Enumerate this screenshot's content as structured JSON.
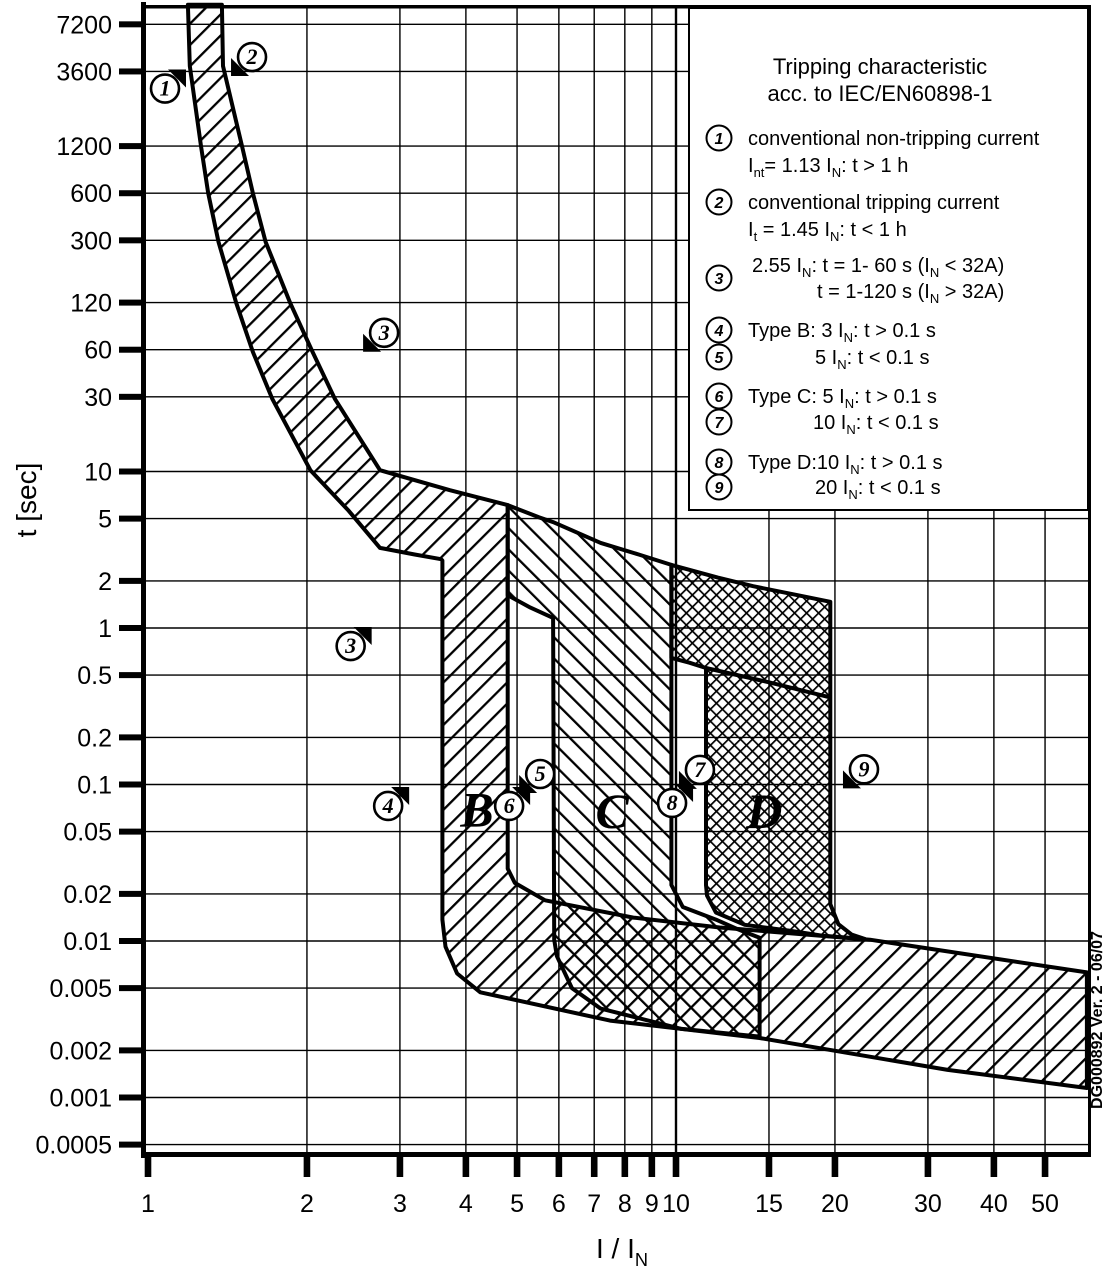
{
  "doc_ref": "DG000892 Ver. 2 - 06/07",
  "axes": {
    "y_label": "t [sec]",
    "x_label": "I / I⟨N⟩",
    "y_ticks": [
      "7200",
      "3600",
      "1200",
      "600",
      "300",
      "120",
      "60",
      "30",
      "10",
      "5",
      "2",
      "1",
      "0.5",
      "0.2",
      "0.1",
      "0.05",
      "0.02",
      "0.01",
      "0.005",
      "0.002",
      "0.001",
      "0.0005"
    ],
    "x_ticks": [
      "1",
      "2",
      "3",
      "4",
      "5",
      "6",
      "7",
      "8",
      "9",
      "10",
      "15",
      "20",
      "30",
      "40",
      "50"
    ]
  },
  "legend": {
    "title_line1": "Tripping characteristic",
    "title_line2": "acc. to IEC/EN60898-1",
    "items": [
      {
        "num": "1",
        "lines": [
          "conventional non-tripping current",
          "I⟨nt⟩= 1.13 I⟨N⟩: t > 1 h"
        ]
      },
      {
        "num": "2",
        "lines": [
          "conventional tripping current",
          "I⟨t⟩ = 1.45 I⟨N⟩: t < 1 h"
        ]
      },
      {
        "num": "3",
        "lines": [
          "2.55 I⟨N⟩: t = 1- 60 s (I⟨N⟩ < 32A)",
          "t = 1-120 s (I⟨N⟩ > 32A)"
        ]
      },
      {
        "num": "4",
        "lines": [
          "Type B: 3 I⟨N⟩: t > 0.1 s"
        ]
      },
      {
        "num": "5",
        "lines": [
          "5 I⟨N⟩: t < 0.1 s"
        ]
      },
      {
        "num": "6",
        "lines": [
          "Type C: 5 I⟨N⟩: t > 0.1 s"
        ]
      },
      {
        "num": "7",
        "lines": [
          "10 I⟨N⟩: t < 0.1 s"
        ]
      },
      {
        "num": "8",
        "lines": [
          "Type D:10 I⟨N⟩: t > 0.1 s"
        ]
      },
      {
        "num": "9",
        "lines": [
          "20 I⟨N⟩: t < 0.1 s"
        ]
      }
    ]
  },
  "chart_data": {
    "type": "area",
    "title": "Tripping characteristic acc. to IEC/EN60898-1",
    "xlabel": "I / I_N",
    "ylabel": "t [sec]",
    "x_range": [
      1,
      60
    ],
    "y_range": [
      0.0005,
      9600
    ],
    "x_scale": "log",
    "y_scale": "log",
    "grid": true,
    "band_labels": [
      {
        "text": "B",
        "v": 4.2,
        "t": 0.069
      },
      {
        "text": "C",
        "v": 7.57,
        "t": 0.0675
      },
      {
        "text": "D",
        "v": 14.7,
        "t": 0.0675
      }
    ],
    "annotations": [
      {
        "n": "1",
        "v": 1.077,
        "t": 2800,
        "dir": "ur",
        "meaning": "non-tripping current 1.13 IN at 1 h"
      },
      {
        "n": "2",
        "v": 1.574,
        "t": 4450,
        "dir": "dl",
        "meaning": "tripping current 1.45 IN at 1 h"
      },
      {
        "n": "3",
        "v": 2.8,
        "t": 77,
        "dir": "dl",
        "meaning": "2.55 IN upper limit 60 s"
      },
      {
        "n": "3",
        "v": 2.42,
        "t": 0.767,
        "dir": "ur",
        "meaning": "2.55 IN lower limit 1 s"
      },
      {
        "n": "4",
        "v": 2.85,
        "t": 0.0729,
        "dir": "ur",
        "meaning": "Type B 3 IN"
      },
      {
        "n": "5",
        "v": 5.53,
        "t": 0.1167,
        "dir": "dl",
        "meaning": "Type B 5 IN"
      },
      {
        "n": "6",
        "v": 4.83,
        "t": 0.0729,
        "dir": "ur",
        "meaning": "Type C 5 IN"
      },
      {
        "n": "7",
        "v": 11.1,
        "t": 0.124,
        "dir": "dl",
        "meaning": "Type C 10 IN"
      },
      {
        "n": "8",
        "v": 9.83,
        "t": 0.0762,
        "dir": "ur",
        "meaning": "Type D 10 IN"
      },
      {
        "n": "9",
        "v": 22.7,
        "t": 0.125,
        "dir": "dl",
        "meaning": "Type D 20 IN"
      }
    ],
    "regions": {
      "thermal_B_band": [
        [
          1.19,
          9600
        ],
        [
          1.2,
          3900
        ],
        [
          1.26,
          1200
        ],
        [
          1.3,
          600
        ],
        [
          1.36,
          293
        ],
        [
          1.47,
          119
        ],
        [
          1.58,
          58
        ],
        [
          1.72,
          29
        ],
        [
          2.03,
          10.2
        ],
        [
          2.4,
          5.6
        ],
        [
          2.75,
          3.25
        ],
        [
          3.2,
          2.95
        ],
        [
          3.59,
          2.75
        ],
        [
          3.61,
          2.7
        ],
        [
          3.61,
          0.0137
        ],
        [
          3.66,
          0.0092
        ],
        [
          3.85,
          0.0062
        ],
        [
          4.26,
          0.0047
        ],
        [
          7.5,
          0.0031
        ],
        [
          14.4,
          0.0024
        ],
        [
          32.7,
          0.0015
        ],
        [
          60,
          0.00115
        ],
        [
          60,
          0.0063
        ],
        [
          23.3,
          0.0102
        ],
        [
          12.1,
          0.0122
        ],
        [
          8.3,
          0.0141
        ],
        [
          5.65,
          0.0182
        ],
        [
          4.95,
          0.0235
        ],
        [
          4.8,
          0.029
        ],
        [
          4.8,
          6.1
        ],
        [
          3.73,
          7.6
        ],
        [
          2.75,
          10.2
        ],
        [
          2.26,
          29
        ],
        [
          2.05,
          58
        ],
        [
          1.86,
          119
        ],
        [
          1.67,
          293
        ],
        [
          1.58,
          600
        ],
        [
          1.507,
          1200
        ],
        [
          1.387,
          3900
        ],
        [
          1.38,
          9600
        ]
      ],
      "C_band": [
        [
          4.8,
          6.1
        ],
        [
          5.5,
          5.1
        ],
        [
          5.85,
          4.75
        ],
        [
          7.2,
          3.5
        ],
        [
          8.5,
          2.95
        ],
        [
          9.8,
          2.53
        ],
        [
          9.8,
          0.0228
        ],
        [
          10.3,
          0.0165
        ],
        [
          11.9,
          0.0137
        ],
        [
          13.0,
          0.012
        ],
        [
          14.4,
          0.0105
        ],
        [
          14.4,
          0.00245
        ],
        [
          10.2,
          0.00275
        ],
        [
          7.2,
          0.0037
        ],
        [
          6.35,
          0.005
        ],
        [
          5.95,
          0.008
        ],
        [
          5.88,
          0.0102
        ],
        [
          5.85,
          1.16
        ],
        [
          5.3,
          1.35
        ],
        [
          4.8,
          1.62
        ]
      ],
      "D_band": [
        [
          9.8,
          2.53
        ],
        [
          12,
          2.1
        ],
        [
          14,
          1.85
        ],
        [
          17,
          1.62
        ],
        [
          19.6,
          1.47
        ],
        [
          19.6,
          0.0172
        ],
        [
          20.3,
          0.0128
        ],
        [
          21.5,
          0.011
        ],
        [
          22.8,
          0.0103
        ],
        [
          19.0,
          0.0108
        ],
        [
          16.5,
          0.0116
        ],
        [
          13.5,
          0.0127
        ],
        [
          11.9,
          0.0152
        ],
        [
          11.45,
          0.0195
        ],
        [
          11.4,
          0.0228
        ],
        [
          11.4,
          0.555
        ],
        [
          10.6,
          0.6
        ],
        [
          9.8,
          0.644
        ]
      ],
      "lower_curve_extension": [
        [
          11.4,
          0.555
        ],
        [
          15,
          0.45
        ],
        [
          19.6,
          0.36
        ]
      ]
    },
    "colors": {
      "ink": "#000000",
      "paper": "#ffffff"
    }
  }
}
